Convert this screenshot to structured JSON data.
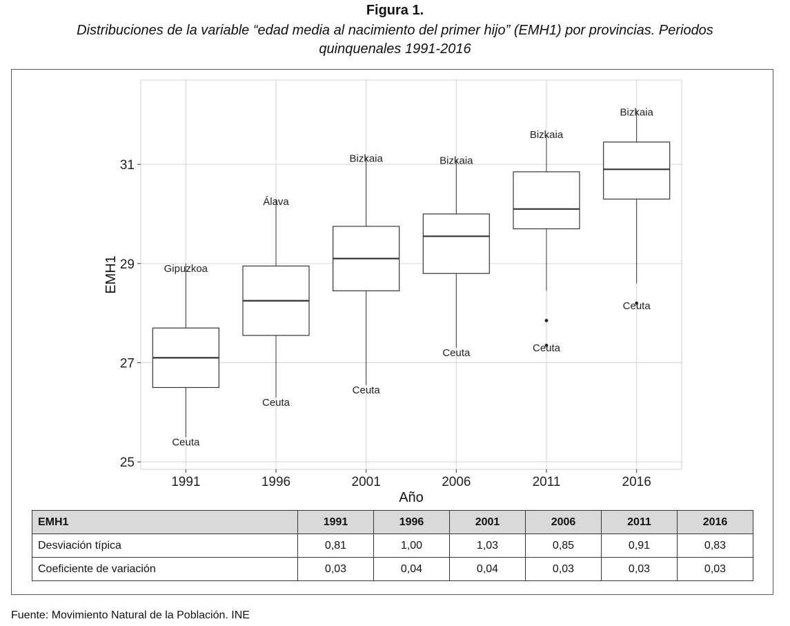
{
  "figure": {
    "title": "Figura 1.",
    "subtitle_line1": "Distribuciones de la variable “edad media al nacimiento del primer hijo” (EMH1) por provincias. Periodos",
    "subtitle_line2": "quinquenales 1991-2016"
  },
  "chart_data": {
    "type": "boxplot",
    "xlabel": "Año",
    "ylabel": "EMH1",
    "ylim": [
      24.85,
      32.7
    ],
    "yticks": [
      25,
      27,
      29,
      31
    ],
    "grid": true,
    "categories": [
      "1991",
      "1996",
      "2001",
      "2006",
      "2011",
      "2016"
    ],
    "boxes": [
      {
        "category": "1991",
        "whisker_low": 25.5,
        "q1": 26.5,
        "median": 27.1,
        "q3": 27.7,
        "whisker_high": 29.0,
        "outliers": []
      },
      {
        "category": "1996",
        "whisker_low": 26.3,
        "q1": 27.55,
        "median": 28.25,
        "q3": 28.95,
        "whisker_high": 30.3,
        "outliers": []
      },
      {
        "category": "2001",
        "whisker_low": 26.55,
        "q1": 28.45,
        "median": 29.1,
        "q3": 29.75,
        "whisker_high": 31.15,
        "outliers": []
      },
      {
        "category": "2006",
        "whisker_low": 27.3,
        "q1": 28.8,
        "median": 29.55,
        "q3": 30.0,
        "whisker_high": 31.1,
        "outliers": []
      },
      {
        "category": "2011",
        "whisker_low": 28.45,
        "q1": 29.7,
        "median": 30.1,
        "q3": 30.85,
        "whisker_high": 31.6,
        "outliers": [
          27.85,
          27.35
        ]
      },
      {
        "category": "2016",
        "whisker_low": 28.6,
        "q1": 30.3,
        "median": 30.9,
        "q3": 31.45,
        "whisker_high": 32.1,
        "outliers": [
          28.2
        ]
      }
    ],
    "annotations": [
      {
        "category": "1991",
        "label": "Gipuzkoa",
        "y": 28.9
      },
      {
        "category": "1991",
        "label": "Ceuta",
        "y": 25.4
      },
      {
        "category": "1996",
        "label": "Álava",
        "y": 30.25
      },
      {
        "category": "1996",
        "label": "Ceuta",
        "y": 26.2
      },
      {
        "category": "2001",
        "label": "Bizkaia",
        "y": 31.12
      },
      {
        "category": "2001",
        "label": "Ceuta",
        "y": 26.45
      },
      {
        "category": "2006",
        "label": "Bizkaia",
        "y": 31.08
      },
      {
        "category": "2006",
        "label": "Ceuta",
        "y": 27.2
      },
      {
        "category": "2011",
        "label": "Bizkaia",
        "y": 31.6
      },
      {
        "category": "2011",
        "label": "Ceuta",
        "y": 27.3
      },
      {
        "category": "2016",
        "label": "Bizkaia",
        "y": 32.05
      },
      {
        "category": "2016",
        "label": "Ceuta",
        "y": 28.15
      }
    ]
  },
  "stats_table": {
    "header": [
      "EMH1",
      "1991",
      "1996",
      "2001",
      "2006",
      "2011",
      "2016"
    ],
    "rows": [
      {
        "label": "Desviación típica",
        "values": [
          "0,81",
          "1,00",
          "1,03",
          "0,85",
          "0,91",
          "0,83"
        ]
      },
      {
        "label": "Coeficiente de variación",
        "values": [
          "0,03",
          "0,04",
          "0,04",
          "0,03",
          "0,03",
          "0,03"
        ]
      }
    ]
  },
  "source": "Fuente: Movimiento Natural de la Población. INE"
}
